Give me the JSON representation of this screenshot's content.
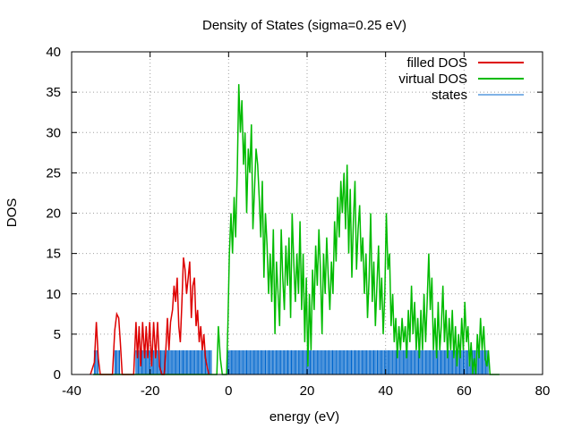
{
  "chart_data": {
    "type": "line",
    "title": "Density of States (sigma=0.25 eV)",
    "xlabel": "energy (eV)",
    "ylabel": "DOS",
    "xlim": [
      -40,
      80
    ],
    "ylim": [
      0,
      40
    ],
    "xticks": [
      -40,
      -20,
      0,
      20,
      40,
      60,
      80
    ],
    "yticks": [
      0,
      5,
      10,
      15,
      20,
      25,
      30,
      35,
      40
    ],
    "grid": true,
    "legend_position": "top-right",
    "series": [
      {
        "name": "filled DOS",
        "color": "#dd0000",
        "points": [
          [
            -35.2,
            0
          ],
          [
            -34.2,
            1.5
          ],
          [
            -33.7,
            6.5
          ],
          [
            -33.2,
            2
          ],
          [
            -32.7,
            0
          ],
          [
            -29.6,
            0
          ],
          [
            -29.0,
            5.5
          ],
          [
            -28.5,
            7.5
          ],
          [
            -28.0,
            7
          ],
          [
            -27.6,
            4
          ],
          [
            -27.1,
            0
          ],
          [
            -24.2,
            0
          ],
          [
            -23.6,
            6.5
          ],
          [
            -23.2,
            2
          ],
          [
            -22.8,
            6
          ],
          [
            -22.4,
            1
          ],
          [
            -21.9,
            6.5
          ],
          [
            -21.4,
            2
          ],
          [
            -21.0,
            6
          ],
          [
            -20.6,
            2
          ],
          [
            -20.1,
            6.5
          ],
          [
            -19.6,
            1
          ],
          [
            -19.1,
            6.5
          ],
          [
            -18.6,
            2
          ],
          [
            -18.1,
            6.5
          ],
          [
            -17.6,
            1
          ],
          [
            -17.0,
            0
          ],
          [
            -16.4,
            0
          ],
          [
            -16.0,
            3
          ],
          [
            -15.6,
            7
          ],
          [
            -15.2,
            3
          ],
          [
            -14.8,
            6.5
          ],
          [
            -14.3,
            8
          ],
          [
            -13.9,
            11
          ],
          [
            -13.5,
            9
          ],
          [
            -13.1,
            12
          ],
          [
            -12.7,
            6
          ],
          [
            -12.3,
            4
          ],
          [
            -11.9,
            9
          ],
          [
            -11.5,
            14.5
          ],
          [
            -11.1,
            13
          ],
          [
            -10.7,
            10
          ],
          [
            -10.3,
            12
          ],
          [
            -9.9,
            14
          ],
          [
            -9.5,
            7
          ],
          [
            -9.1,
            11
          ],
          [
            -8.7,
            12
          ],
          [
            -8.3,
            6
          ],
          [
            -7.9,
            8
          ],
          [
            -7.5,
            4
          ],
          [
            -7.1,
            6
          ],
          [
            -6.7,
            3
          ],
          [
            -6.3,
            5
          ],
          [
            -5.9,
            2
          ],
          [
            -5.5,
            1
          ],
          [
            -5.0,
            0
          ]
        ]
      },
      {
        "name": "virtual DOS",
        "color": "#00bb00",
        "points": [
          [
            -34.5,
            0
          ],
          [
            -3.0,
            0
          ],
          [
            -2.6,
            6
          ],
          [
            -2.1,
            2
          ],
          [
            -1.6,
            0
          ],
          [
            -0.5,
            0
          ],
          [
            -0.2,
            6
          ],
          [
            0.2,
            15
          ],
          [
            0.6,
            20
          ],
          [
            1.0,
            15
          ],
          [
            1.4,
            22
          ],
          [
            1.8,
            17
          ],
          [
            2.2,
            25
          ],
          [
            2.6,
            36
          ],
          [
            3.0,
            30
          ],
          [
            3.4,
            34
          ],
          [
            3.8,
            26
          ],
          [
            4.2,
            30
          ],
          [
            4.6,
            20
          ],
          [
            5.0,
            28
          ],
          [
            5.4,
            25
          ],
          [
            5.8,
            31
          ],
          [
            6.2,
            18
          ],
          [
            6.6,
            23
          ],
          [
            7.0,
            28
          ],
          [
            7.4,
            26
          ],
          [
            7.8,
            22
          ],
          [
            8.2,
            17
          ],
          [
            8.6,
            24
          ],
          [
            9.0,
            12
          ],
          [
            9.4,
            20
          ],
          [
            9.8,
            16
          ],
          [
            10.2,
            10
          ],
          [
            10.6,
            15
          ],
          [
            11.0,
            9
          ],
          [
            11.4,
            18
          ],
          [
            11.8,
            5
          ],
          [
            12.2,
            14
          ],
          [
            12.6,
            10
          ],
          [
            13.0,
            6
          ],
          [
            13.4,
            18
          ],
          [
            13.8,
            12
          ],
          [
            14.2,
            8
          ],
          [
            14.6,
            16
          ],
          [
            15.0,
            11
          ],
          [
            15.4,
            17
          ],
          [
            15.8,
            7
          ],
          [
            16.2,
            20
          ],
          [
            16.6,
            14
          ],
          [
            17.0,
            9
          ],
          [
            17.4,
            15
          ],
          [
            17.8,
            10
          ],
          [
            18.2,
            19
          ],
          [
            18.6,
            8
          ],
          [
            19.0,
            15
          ],
          [
            19.4,
            4
          ],
          [
            19.8,
            12
          ],
          [
            20.2,
            1
          ],
          [
            20.6,
            10
          ],
          [
            21.0,
            3
          ],
          [
            21.4,
            13
          ],
          [
            21.8,
            8
          ],
          [
            22.2,
            16
          ],
          [
            22.6,
            11
          ],
          [
            23.0,
            18
          ],
          [
            23.4,
            13
          ],
          [
            23.8,
            5
          ],
          [
            24.2,
            15
          ],
          [
            24.6,
            10
          ],
          [
            25.0,
            17
          ],
          [
            25.4,
            12
          ],
          [
            25.8,
            8
          ],
          [
            26.2,
            14
          ],
          [
            26.6,
            10
          ],
          [
            27.0,
            19
          ],
          [
            27.4,
            14
          ],
          [
            27.8,
            22
          ],
          [
            28.2,
            17
          ],
          [
            28.6,
            24
          ],
          [
            29.0,
            20
          ],
          [
            29.4,
            25
          ],
          [
            29.8,
            18
          ],
          [
            30.2,
            26
          ],
          [
            30.6,
            15
          ],
          [
            31.0,
            23
          ],
          [
            31.4,
            12
          ],
          [
            31.8,
            19
          ],
          [
            32.2,
            24
          ],
          [
            32.6,
            13
          ],
          [
            33.0,
            18
          ],
          [
            33.4,
            21
          ],
          [
            33.8,
            14
          ],
          [
            34.2,
            17
          ],
          [
            34.6,
            10
          ],
          [
            35.0,
            15
          ],
          [
            35.4,
            7
          ],
          [
            35.8,
            12
          ],
          [
            36.2,
            20
          ],
          [
            36.6,
            9
          ],
          [
            37.0,
            14
          ],
          [
            37.4,
            6
          ],
          [
            37.8,
            11
          ],
          [
            38.2,
            16
          ],
          [
            38.6,
            8
          ],
          [
            39.0,
            12
          ],
          [
            39.4,
            5
          ],
          [
            39.8,
            10
          ],
          [
            40.2,
            20
          ],
          [
            40.6,
            13
          ],
          [
            41.0,
            15
          ],
          [
            41.4,
            6
          ],
          [
            41.8,
            10
          ],
          [
            42.2,
            4
          ],
          [
            42.6,
            7
          ],
          [
            43.0,
            2
          ],
          [
            43.4,
            6
          ],
          [
            43.8,
            3
          ],
          [
            44.2,
            7
          ],
          [
            44.6,
            4
          ],
          [
            45.0,
            6
          ],
          [
            45.4,
            2
          ],
          [
            45.8,
            8
          ],
          [
            46.2,
            4
          ],
          [
            46.6,
            11
          ],
          [
            47.0,
            5
          ],
          [
            47.4,
            9
          ],
          [
            47.8,
            3
          ],
          [
            48.2,
            7
          ],
          [
            48.6,
            2
          ],
          [
            49.0,
            8
          ],
          [
            49.4,
            3
          ],
          [
            49.8,
            10
          ],
          [
            50.2,
            4
          ],
          [
            50.6,
            9
          ],
          [
            51.0,
            15
          ],
          [
            51.4,
            8
          ],
          [
            51.8,
            12
          ],
          [
            52.2,
            3
          ],
          [
            52.6,
            7
          ],
          [
            53.0,
            2
          ],
          [
            53.4,
            9
          ],
          [
            53.8,
            3
          ],
          [
            54.2,
            6
          ],
          [
            54.6,
            11
          ],
          [
            55.0,
            4
          ],
          [
            55.4,
            8
          ],
          [
            55.8,
            2
          ],
          [
            56.2,
            7
          ],
          [
            56.6,
            3
          ],
          [
            57.0,
            8
          ],
          [
            57.4,
            2
          ],
          [
            57.8,
            6
          ],
          [
            58.2,
            1
          ],
          [
            58.6,
            5
          ],
          [
            59.0,
            2
          ],
          [
            59.4,
            7
          ],
          [
            59.8,
            3
          ],
          [
            60.2,
            9
          ],
          [
            60.6,
            4
          ],
          [
            61.0,
            6
          ],
          [
            61.4,
            1
          ],
          [
            61.8,
            4
          ],
          [
            62.2,
            0
          ],
          [
            62.6,
            2
          ],
          [
            63.0,
            0
          ],
          [
            63.4,
            5
          ],
          [
            63.8,
            2
          ],
          [
            64.2,
            7
          ],
          [
            64.6,
            3
          ],
          [
            65.0,
            6
          ],
          [
            65.4,
            2
          ],
          [
            65.8,
            1
          ],
          [
            66.2,
            3
          ],
          [
            66.6,
            0
          ],
          [
            69.0,
            0
          ]
        ]
      },
      {
        "name": "states",
        "color": "#0066cc",
        "height": 3,
        "ranges": [
          [
            -34.2,
            -33.2
          ],
          [
            -29.0,
            -27.6
          ],
          [
            -23.6,
            -4.2
          ],
          [
            -0.2,
            66.2
          ]
        ],
        "step": 0.3
      }
    ]
  }
}
